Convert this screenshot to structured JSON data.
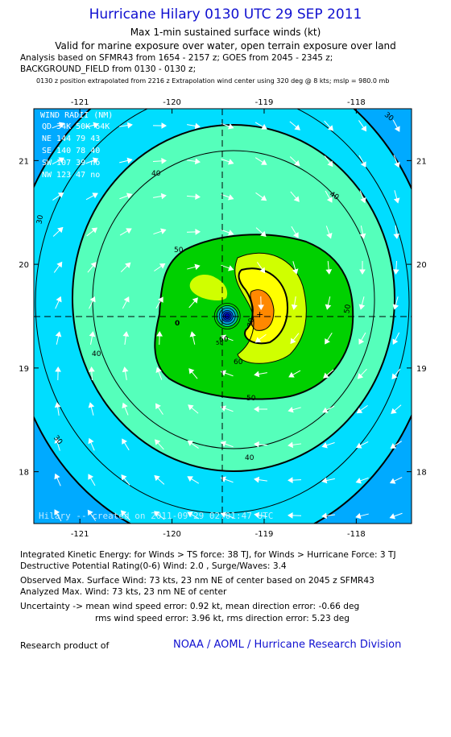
{
  "header": {
    "title": "Hurricane Hilary 0130 UTC 29 SEP 2011",
    "subtitle1": "Max 1-min sustained surface winds (kt)",
    "subtitle2": "Valid for marine exposure over water, open terrain exposure over land",
    "analysis1": "Analysis based on SFMR43 from 1654 - 2157 z; GOES from 2045 - 2345 z;",
    "analysis2": "BACKGROUND_FIELD from 0130 - 0130 z;",
    "analysis3": "0130 z position extrapolated from 2216 z Extrapolation wind center using 320 deg @ 8 kts; mslp = 980.0 mb"
  },
  "chart_data": {
    "type": "contour",
    "x_ticks": [
      "-121",
      "-120",
      "-119",
      "-118"
    ],
    "x_values": [
      -121,
      -120,
      -119,
      -118
    ],
    "y_ticks": [
      "21",
      "20",
      "19",
      "18"
    ],
    "y_values": [
      21,
      20,
      19,
      18
    ],
    "xlim": [
      -121.5,
      -117.4
    ],
    "ylim": [
      17.5,
      21.5
    ],
    "center": {
      "lon": -119.4,
      "lat": 19.5
    },
    "contour_levels": [
      30,
      40,
      50,
      60,
      70
    ],
    "contour_labels": [
      "30",
      "30",
      "30",
      "40",
      "40",
      "40",
      "40",
      "50",
      "50",
      "50",
      "60",
      "60",
      "70",
      "0",
      "50"
    ],
    "colors": {
      "w25": "#00aaff",
      "w30": "#00ddff",
      "w40": "#55ffbb",
      "w50": "#00d000",
      "w60": "#d0ff00",
      "w65": "#ffff00",
      "w70": "#ff8800",
      "eye": "#0000cc"
    },
    "wind_radii": {
      "title": "WIND RADII (NM)",
      "header": [
        "QD",
        "34K",
        "50K",
        "64K"
      ],
      "rows": [
        [
          "NE",
          "144",
          "79",
          "43"
        ],
        [
          "SE",
          "140",
          "78",
          "40"
        ],
        [
          "SW",
          "107",
          "39",
          "no"
        ],
        [
          "NW",
          "123",
          "47",
          "no"
        ]
      ]
    },
    "watermark": "Hilary -- created on 2011-09-29 02:01:47 UTC"
  },
  "info": {
    "ike": "Integrated Kinetic Energy:  for Winds > TS force: 38 TJ,  for Winds > Hurricane Force: 3 TJ",
    "dpr": "Destructive Potential Rating(0-6)   Wind: 2.0 , Surge/Waves: 3.4",
    "obs": "Observed Max. Surface Wind: 73 kts, 23 nm NE of center based on 2045 z SFMR43",
    "analyzed": "Analyzed Max. Wind: 73 kts, 23 nm NE of center",
    "unc1": "Uncertainty -> mean wind speed error: 0.92 kt,   mean direction error:  -0.66 deg",
    "unc2": "rms wind speed error: 3.96 kt,   rms direction error: 5.23 deg"
  },
  "footer": {
    "research": "Research product of",
    "org": "NOAA / AOML / Hurricane Research Division"
  }
}
